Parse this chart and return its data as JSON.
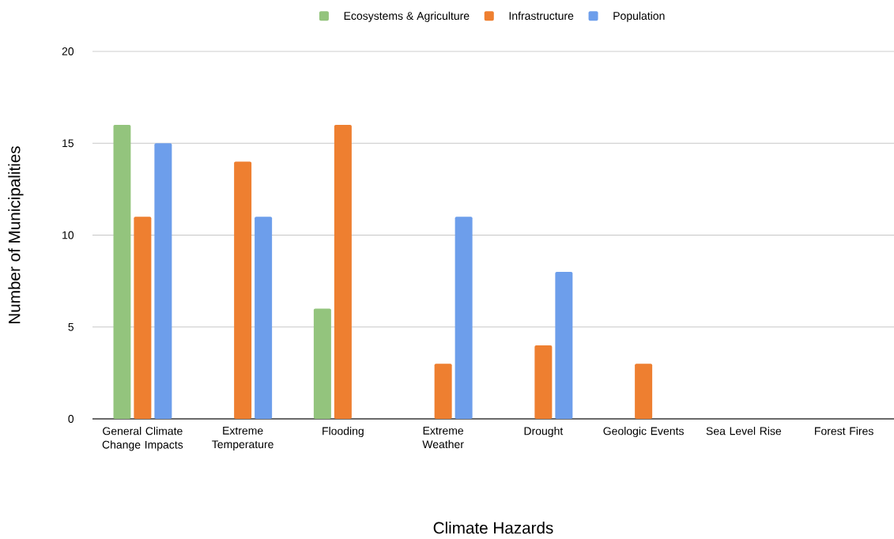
{
  "chart_data": {
    "type": "bar",
    "xlabel": "Climate Hazards",
    "ylabel": "Number of Municipalities",
    "categories": [
      "General Climate Change Impacts",
      "Extreme Temperature",
      "Flooding",
      "Extreme Weather",
      "Drought",
      "Geologic Events",
      "Sea Level Rise",
      "Forest Fires"
    ],
    "series": [
      {
        "name": "Ecosystems & Agriculture",
        "color": "#93c47d",
        "values": [
          16,
          0,
          6,
          0,
          0,
          0,
          0,
          0
        ]
      },
      {
        "name": "Infrastructure",
        "color": "#ee7f30",
        "values": [
          11,
          14,
          16,
          3,
          4,
          3,
          0,
          0
        ]
      },
      {
        "name": "Population",
        "color": "#6d9eeb",
        "values": [
          15,
          11,
          0,
          11,
          8,
          0,
          0,
          0
        ]
      }
    ],
    "ylim": [
      0,
      20
    ],
    "yticks": [
      0,
      5,
      10,
      15,
      20
    ],
    "grid": "y",
    "legend": "top"
  }
}
